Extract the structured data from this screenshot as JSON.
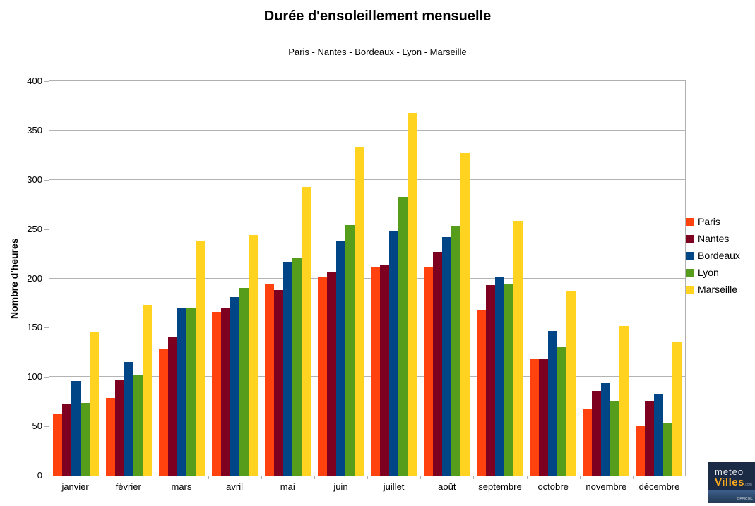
{
  "chart_data": {
    "type": "bar",
    "title": "Durée d'ensoleillement mensuelle",
    "subtitle": "Paris - Nantes - Bordeaux - Lyon - Marseille",
    "xlabel": "",
    "ylabel": "Nombre d'heures",
    "ylim": [
      0,
      400
    ],
    "ytick_step": 50,
    "grid": true,
    "legend_position": "right",
    "categories": [
      "janvier",
      "février",
      "mars",
      "avril",
      "mai",
      "juin",
      "juillet",
      "août",
      "septembre",
      "octobre",
      "novembre",
      "décembre"
    ],
    "series": [
      {
        "name": "Paris",
        "color": "#FF420E",
        "values": [
          62,
          79,
          129,
          166,
          194,
          202,
          212,
          212,
          168,
          118,
          68,
          51
        ]
      },
      {
        "name": "Nantes",
        "color": "#7E0021",
        "values": [
          73,
          97,
          141,
          170,
          188,
          206,
          213,
          227,
          193,
          119,
          86,
          76
        ]
      },
      {
        "name": "Bordeaux",
        "color": "#004586",
        "values": [
          96,
          115,
          170,
          181,
          217,
          238,
          248,
          242,
          202,
          147,
          94,
          82
        ]
      },
      {
        "name": "Lyon",
        "color": "#579D1C",
        "values": [
          74,
          102,
          170,
          190,
          221,
          254,
          283,
          253,
          194,
          130,
          76,
          54
        ]
      },
      {
        "name": "Marseille",
        "color": "#FFD320",
        "values": [
          145,
          173,
          238,
          244,
          293,
          333,
          368,
          327,
          258,
          187,
          152,
          135
        ]
      }
    ]
  },
  "colors": {
    "grid": "#b3b3b3",
    "axis": "#b0b0b0",
    "text": "#000000"
  },
  "logo": {
    "line1": "meteo",
    "line2": "Villes",
    "suffix": ".com",
    "tagline": "officiel"
  }
}
